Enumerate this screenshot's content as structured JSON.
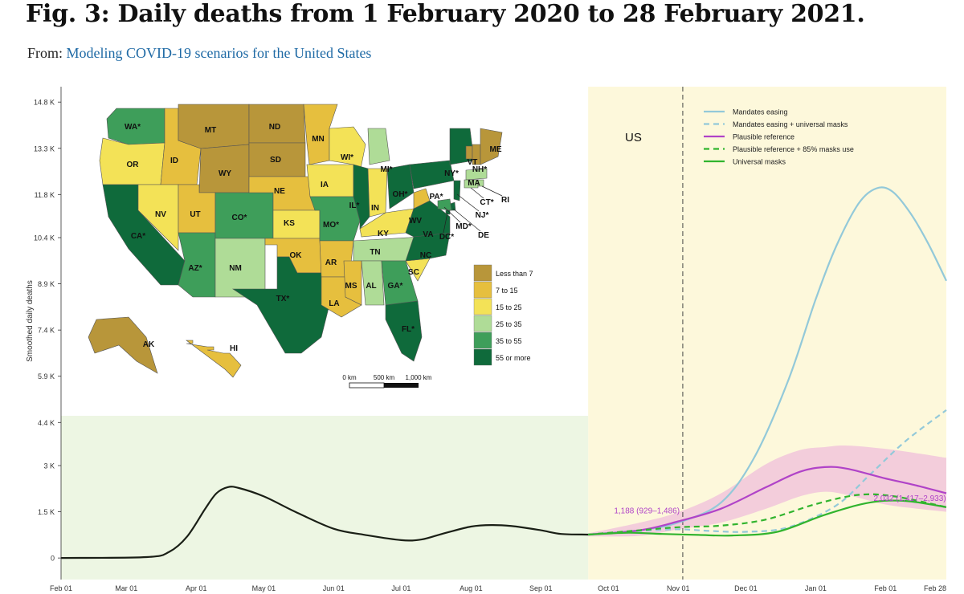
{
  "header": {
    "title": "Fig. 3: Daily deaths from 1 February 2020 to 28 February 2021.",
    "source_prefix": "From:",
    "source_link": "Modeling COVID-19 scenarios for the United States"
  },
  "colors": {
    "history": "#1a1f16",
    "history_bg": "#edf6e3",
    "forecast_bg": "#fdf8db",
    "mandates_easing": "#93c9d9",
    "mandates_easing_masks": "#93c9d9",
    "plausible_reference": "#b043c8",
    "plausible_band": "#efbfdb",
    "plausible_masks_85": "#31b42e",
    "universal_masks": "#31b42e"
  },
  "map": {
    "region_label": "US",
    "legend": [
      {
        "label": "Less than 7",
        "color": "#b8963a"
      },
      {
        "label": "7 to 15",
        "color": "#e6bf3e"
      },
      {
        "label": "15 to 25",
        "color": "#f3e257"
      },
      {
        "label": "25 to 35",
        "color": "#afdc97"
      },
      {
        "label": "35 to 55",
        "color": "#3e9e5a"
      },
      {
        "label": "55 or more",
        "color": "#0f6a3b"
      }
    ],
    "scale_labels": [
      "0 km",
      "500 km",
      "1,000 km"
    ],
    "states": [
      {
        "label": "WA*",
        "color": "#3e9e5a"
      },
      {
        "label": "OR",
        "color": "#f3e257"
      },
      {
        "label": "CA*",
        "color": "#0f6a3b"
      },
      {
        "label": "ID",
        "color": "#e6bf3e"
      },
      {
        "label": "NV",
        "color": "#f3e257"
      },
      {
        "label": "MT",
        "color": "#b8963a"
      },
      {
        "label": "WY",
        "color": "#b8963a"
      },
      {
        "label": "UT",
        "color": "#e6bf3e"
      },
      {
        "label": "AZ*",
        "color": "#3e9e5a"
      },
      {
        "label": "CO*",
        "color": "#3e9e5a"
      },
      {
        "label": "NM",
        "color": "#afdc97"
      },
      {
        "label": "ND",
        "color": "#b8963a"
      },
      {
        "label": "SD",
        "color": "#b8963a"
      },
      {
        "label": "NE",
        "color": "#e6bf3e"
      },
      {
        "label": "KS",
        "color": "#f3e257"
      },
      {
        "label": "OK",
        "color": "#e6bf3e"
      },
      {
        "label": "TX*",
        "color": "#0f6a3b"
      },
      {
        "label": "MN",
        "color": "#e6bf3e"
      },
      {
        "label": "IA",
        "color": "#f3e257"
      },
      {
        "label": "MO*",
        "color": "#3e9e5a"
      },
      {
        "label": "AR",
        "color": "#e6bf3e"
      },
      {
        "label": "LA",
        "color": "#e6bf3e"
      },
      {
        "label": "WI*",
        "color": "#f3e257"
      },
      {
        "label": "IL*",
        "color": "#0f6a3b"
      },
      {
        "label": "MI*",
        "color": "#afdc97"
      },
      {
        "label": "IN",
        "color": "#f3e257"
      },
      {
        "label": "OH*",
        "color": "#0f6a3b"
      },
      {
        "label": "KY",
        "color": "#f3e257"
      },
      {
        "label": "TN",
        "color": "#afdc97"
      },
      {
        "label": "MS",
        "color": "#e6bf3e"
      },
      {
        "label": "AL",
        "color": "#afdc97"
      },
      {
        "label": "GA*",
        "color": "#3e9e5a"
      },
      {
        "label": "FL*",
        "color": "#0f6a3b"
      },
      {
        "label": "SC",
        "color": "#f3e257"
      },
      {
        "label": "NC",
        "color": "#0f6a3b"
      },
      {
        "label": "VA",
        "color": "#0f6a3b"
      },
      {
        "label": "WV",
        "color": "#e6bf3e"
      },
      {
        "label": "PA*",
        "color": "#0f6a3b"
      },
      {
        "label": "NY*",
        "color": "#0f6a3b"
      },
      {
        "label": "VT",
        "color": "#b8963a"
      },
      {
        "label": "NH*",
        "color": "#b8963a"
      },
      {
        "label": "ME",
        "color": "#b8963a"
      },
      {
        "label": "MA",
        "color": "#afdc97"
      },
      {
        "label": "CT*",
        "color": "#afdc97"
      },
      {
        "label": "RI",
        "color": "#afdc97"
      },
      {
        "label": "NJ*",
        "color": "#0f6a3b"
      },
      {
        "label": "DE",
        "color": "#0f6a3b"
      },
      {
        "label": "MD*",
        "color": "#3e9e5a"
      },
      {
        "label": "DC*",
        "color": "#0f6a3b"
      },
      {
        "label": "AK",
        "color": "#b8963a"
      },
      {
        "label": "HI",
        "color": "#e6bf3e"
      }
    ]
  },
  "chart_data": {
    "type": "line",
    "ylabel": "Smoothed daily deaths",
    "x_ticks": [
      "Feb 01",
      "Mar 01",
      "Apr 01",
      "May 01",
      "Jun 01",
      "Jul 01",
      "Aug 01",
      "Sep 01",
      "Oct 01",
      "Nov 01",
      "Dec 01",
      "Jan 01",
      "Feb 01",
      "Feb 28"
    ],
    "y_ticks": [
      0,
      1500,
      3000,
      4400,
      5900,
      7400,
      8900,
      10400,
      11800,
      13300,
      14800
    ],
    "y_tick_labels": [
      "0",
      "1.5 K",
      "3 K",
      "4.4 K",
      "5.9 K",
      "7.4 K",
      "8.9 K",
      "10.4 K",
      "11.8 K",
      "13.3 K",
      "14.8 K"
    ],
    "ylim": [
      -700,
      15300
    ],
    "x_range": [
      "2020-02-01",
      "2021-02-28"
    ],
    "forecast_start": "2020-09-22",
    "vline_date": "2020-11-03",
    "series": [
      {
        "name": "History",
        "key": "history",
        "x": [
          "2020-02-01",
          "2020-03-10",
          "2020-03-20",
          "2020-03-28",
          "2020-04-05",
          "2020-04-10",
          "2020-04-15",
          "2020-04-20",
          "2020-05-01",
          "2020-05-15",
          "2020-06-01",
          "2020-06-15",
          "2020-07-01",
          "2020-07-10",
          "2020-07-20",
          "2020-08-01",
          "2020-08-10",
          "2020-08-20",
          "2020-09-01",
          "2020-09-10",
          "2020-09-22"
        ],
        "y": [
          0,
          30,
          200,
          700,
          1600,
          2100,
          2300,
          2270,
          2000,
          1500,
          950,
          750,
          580,
          600,
          800,
          1020,
          1070,
          1030,
          900,
          780,
          760
        ]
      },
      {
        "name": "Mandates easing",
        "key": "mandates_easing",
        "dash": "",
        "x": [
          "2020-09-22",
          "2020-10-15",
          "2020-11-01",
          "2020-11-20",
          "2020-12-05",
          "2020-12-20",
          "2021-01-01",
          "2021-01-10",
          "2021-01-20",
          "2021-01-28",
          "2021-02-04",
          "2021-02-12",
          "2021-02-20",
          "2021-02-28"
        ],
        "y": [
          760,
          900,
          1150,
          1800,
          3300,
          5800,
          8400,
          10100,
          11500,
          12000,
          11900,
          11200,
          10200,
          9000
        ]
      },
      {
        "name": "Mandates easing + universal masks",
        "key": "mandates_easing_masks",
        "dash": "7 5",
        "x": [
          "2020-09-22",
          "2020-10-15",
          "2020-11-01",
          "2020-11-15",
          "2020-12-01",
          "2020-12-20",
          "2021-01-10",
          "2021-01-25",
          "2021-02-10",
          "2021-02-28"
        ],
        "y": [
          760,
          880,
          930,
          880,
          850,
          1000,
          1700,
          2700,
          3800,
          4800
        ]
      },
      {
        "name": "Plausible reference",
        "key": "plausible_reference",
        "dash": "",
        "x": [
          "2020-09-22",
          "2020-10-15",
          "2020-11-01",
          "2020-11-20",
          "2020-12-10",
          "2020-12-25",
          "2021-01-05",
          "2021-01-15",
          "2021-01-31",
          "2021-02-15",
          "2021-02-28"
        ],
        "y": [
          760,
          900,
          1188,
          1600,
          2300,
          2800,
          2950,
          2900,
          2600,
          2350,
          2100
        ]
      },
      {
        "name": "Plausible reference + 85% masks use",
        "key": "plausible_masks_85",
        "dash": "7 5",
        "x": [
          "2020-09-22",
          "2020-10-15",
          "2020-11-01",
          "2020-11-20",
          "2020-12-10",
          "2021-01-01",
          "2021-01-20",
          "2021-02-05",
          "2021-02-28"
        ],
        "y": [
          760,
          900,
          1000,
          1050,
          1250,
          1750,
          2050,
          2000,
          1650
        ]
      },
      {
        "name": "Universal masks",
        "key": "universal_masks",
        "dash": "",
        "x": [
          "2020-09-22",
          "2020-10-10",
          "2020-10-25",
          "2020-11-10",
          "2020-11-25",
          "2020-12-15",
          "2021-01-05",
          "2021-01-25",
          "2021-02-10",
          "2021-02-28"
        ],
        "y": [
          760,
          820,
          780,
          750,
          730,
          850,
          1400,
          1800,
          1850,
          1650
        ]
      }
    ],
    "band": {
      "name": "Plausible reference interval",
      "x": [
        "2020-09-22",
        "2020-10-15",
        "2020-11-01",
        "2020-11-20",
        "2020-12-10",
        "2020-12-25",
        "2021-01-05",
        "2021-01-15",
        "2021-01-31",
        "2021-02-15",
        "2021-02-28"
      ],
      "lower": [
        700,
        720,
        929,
        1150,
        1600,
        2000,
        2150,
        2050,
        1750,
        1600,
        1500
      ],
      "upper": [
        800,
        1150,
        1486,
        2100,
        3050,
        3500,
        3600,
        3650,
        3550,
        3400,
        3250
      ]
    },
    "annotations": [
      {
        "text": "1,188 (929–1,486)",
        "x": "2020-11-01",
        "y": 1188
      },
      {
        "text": "2,032 (1,417–2,933)",
        "x": "2021-02-10",
        "y": 2032
      }
    ],
    "grid": false,
    "legend_position": "top-right"
  }
}
